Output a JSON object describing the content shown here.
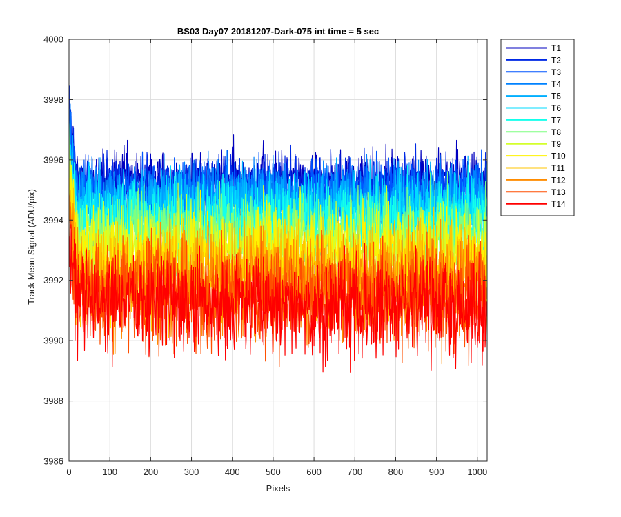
{
  "chart_data": {
    "type": "line",
    "title": "BS03 Day07 20181207-Dark-075 int time = 5 sec",
    "xlabel": "Pixels",
    "ylabel": "Track Mean Signal (ADU/pix)",
    "xlim": [
      0,
      1024
    ],
    "ylim": [
      3986,
      4000
    ],
    "xticks": [
      0,
      100,
      200,
      300,
      400,
      500,
      600,
      700,
      800,
      900,
      1000
    ],
    "yticks": [
      3986,
      3988,
      3990,
      3992,
      3994,
      3996,
      3998,
      4000
    ],
    "grid": true,
    "legend_position": "outside-top-right",
    "n_points": 1024,
    "series": [
      {
        "name": "T1",
        "color": "#0000BF",
        "mean": 3995.3,
        "spread": 0.7
      },
      {
        "name": "T2",
        "color": "#0029E5",
        "mean": 3995.1,
        "spread": 0.7
      },
      {
        "name": "T3",
        "color": "#0055FF",
        "mean": 3994.9,
        "spread": 0.7
      },
      {
        "name": "T4",
        "color": "#0082FF",
        "mean": 3994.8,
        "spread": 0.8
      },
      {
        "name": "T5",
        "color": "#00AFFF",
        "mean": 3994.5,
        "spread": 0.8
      },
      {
        "name": "T6",
        "color": "#00DBFF",
        "mean": 3994.2,
        "spread": 0.9
      },
      {
        "name": "T7",
        "color": "#14FFEB",
        "mean": 3993.9,
        "spread": 0.9
      },
      {
        "name": "T8",
        "color": "#7FFF80",
        "mean": 3993.5,
        "spread": 1.0
      },
      {
        "name": "T9",
        "color": "#D4FF2B",
        "mean": 3993.1,
        "spread": 1.0
      },
      {
        "name": "T10",
        "color": "#FFF200",
        "mean": 3992.7,
        "spread": 1.1
      },
      {
        "name": "T11",
        "color": "#FFC600",
        "mean": 3992.3,
        "spread": 1.1
      },
      {
        "name": "T12",
        "color": "#FF8C00",
        "mean": 3991.9,
        "spread": 1.2
      },
      {
        "name": "T13",
        "color": "#FF4F00",
        "mean": 3991.5,
        "spread": 1.2
      },
      {
        "name": "T14",
        "color": "#FF0000",
        "mean": 3991.2,
        "spread": 1.2
      }
    ]
  }
}
